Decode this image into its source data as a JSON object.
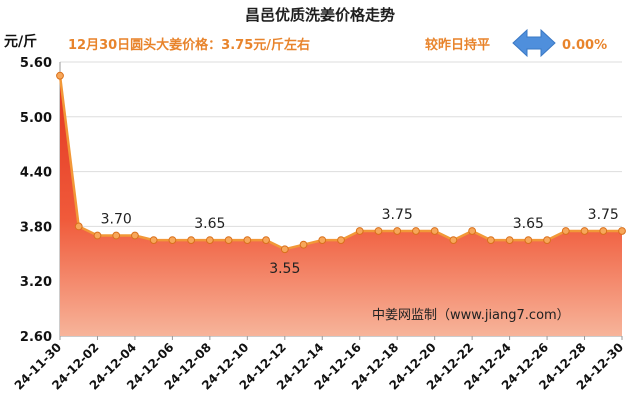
{
  "header": {
    "title": "昌邑优质洗姜价格走势",
    "price_note": "12月30日圆头大姜价格：3.75元/斤左右",
    "compare_label": "较昨日持平",
    "change_pct": "0.00%",
    "arrow_icon": "left-right-arrow-icon",
    "arrow_color": "#4f8fdc"
  },
  "watermark": "中姜网监制（www.jiang7.com）",
  "colors": {
    "area_top": "#e23622",
    "area_bottom": "#f7b49a",
    "line": "#f29838",
    "marker_fill": "#f7a75a",
    "grid": "#dddddd"
  },
  "chart_data": {
    "type": "area",
    "ylabel": "元/斤",
    "ylim": [
      2.6,
      5.6
    ],
    "yticks": [
      "5.60",
      "5.00",
      "4.40",
      "3.80",
      "3.20",
      "2.60"
    ],
    "x": [
      "24-11-30",
      "24-12-01",
      "24-12-02",
      "24-12-03",
      "24-12-04",
      "24-12-05",
      "24-12-06",
      "24-12-07",
      "24-12-08",
      "24-12-09",
      "24-12-10",
      "24-12-11",
      "24-12-12",
      "24-12-13",
      "24-12-14",
      "24-12-15",
      "24-12-16",
      "24-12-17",
      "24-12-18",
      "24-12-19",
      "24-12-20",
      "24-12-21",
      "24-12-22",
      "24-12-23",
      "24-12-24",
      "24-12-25",
      "24-12-26",
      "24-12-27",
      "24-12-28",
      "24-12-29",
      "24-12-30"
    ],
    "xtick_labels": [
      "24-11-30",
      "24-12-02",
      "24-12-04",
      "24-12-06",
      "24-12-08",
      "24-12-10",
      "24-12-12",
      "24-12-14",
      "24-12-16",
      "24-12-18",
      "24-12-20",
      "24-12-22",
      "24-12-24",
      "24-12-26",
      "24-12-28",
      "24-12-30"
    ],
    "values": [
      5.45,
      3.8,
      3.7,
      3.7,
      3.7,
      3.65,
      3.65,
      3.65,
      3.65,
      3.65,
      3.65,
      3.65,
      3.55,
      3.6,
      3.65,
      3.65,
      3.75,
      3.75,
      3.75,
      3.75,
      3.75,
      3.65,
      3.75,
      3.65,
      3.65,
      3.65,
      3.65,
      3.75,
      3.75,
      3.75,
      3.75
    ],
    "data_labels": [
      {
        "index": 3,
        "text": "3.70"
      },
      {
        "index": 8,
        "text": "3.65"
      },
      {
        "index": 12,
        "text": "3.55"
      },
      {
        "index": 18,
        "text": "3.75"
      },
      {
        "index": 25,
        "text": "3.65"
      },
      {
        "index": 29,
        "text": "3.75"
      }
    ],
    "grid": true,
    "legend": "none"
  }
}
